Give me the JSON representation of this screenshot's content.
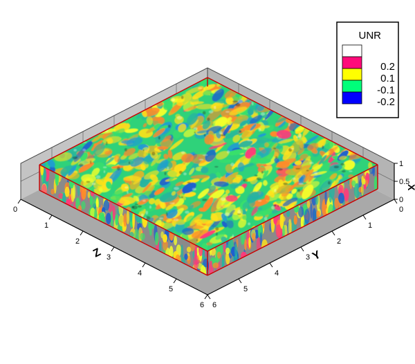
{
  "legend": {
    "title": "UNR",
    "entries": [
      {
        "label": "",
        "color": "#ffffff"
      },
      {
        "label": "0.2",
        "color": "#ff0a7a"
      },
      {
        "label": "0.1",
        "color": "#ffff00"
      },
      {
        "label": "-0.1",
        "color": "#00ff7a"
      },
      {
        "label": "-0.2",
        "color": "#0000ff"
      }
    ]
  },
  "axes": {
    "z": {
      "title": "Z",
      "ticks": [
        "0",
        "1",
        "2",
        "3",
        "4",
        "5",
        "6"
      ]
    },
    "y": {
      "title": "Y",
      "ticks": [
        "0",
        "1",
        "2",
        "3",
        "4",
        "5",
        "6"
      ]
    },
    "x": {
      "title": "X",
      "ticks": [
        "0",
        "0.5",
        "1"
      ]
    }
  },
  "colors": {
    "box_outline": "#cc0000",
    "wall": "#b8b8b8",
    "grid": "#6e6e6e",
    "axis": "#000000"
  }
}
